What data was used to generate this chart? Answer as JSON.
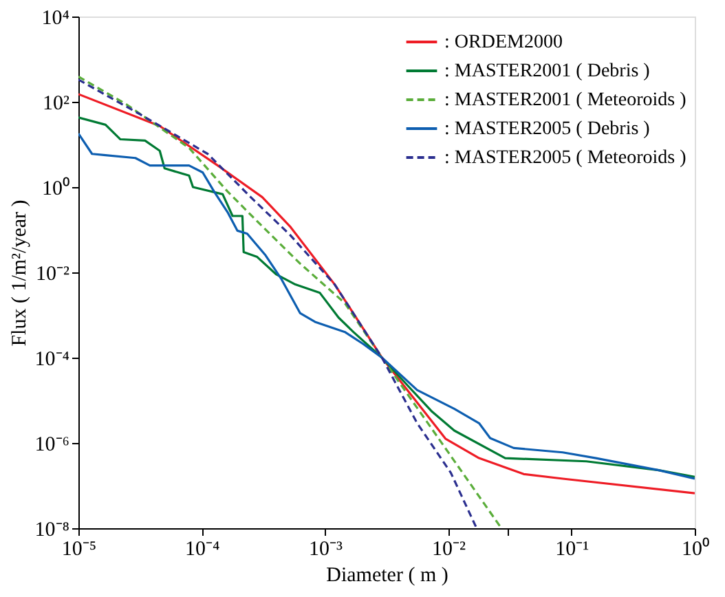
{
  "chart_data": {
    "type": "line",
    "xlabel": "Diameter ( m )",
    "ylabel": "Flux ( 1/m²/year )",
    "log": "xy",
    "grid": false,
    "legend": "top right",
    "xlim": [
      1e-05,
      1
    ],
    "ylim": [
      1e-08,
      10000
    ],
    "xticks": [
      {
        "value": 1e-05,
        "label": "10⁻⁵"
      },
      {
        "value": 0.0001,
        "label": "10⁻⁴"
      },
      {
        "value": 0.001,
        "label": "10⁻³"
      },
      {
        "value": 0.01,
        "label": "10⁻²"
      },
      {
        "value": 0.03,
        "label": null
      },
      {
        "value": 0.1,
        "label": "10⁻¹"
      },
      {
        "value": 1,
        "label": "10⁰"
      }
    ],
    "yticks": [
      {
        "value": 1e-08,
        "label": "10⁻⁸"
      },
      {
        "value": 1e-06,
        "label": "10⁻⁶"
      },
      {
        "value": 0.0001,
        "label": "10⁻⁴"
      },
      {
        "value": 0.01,
        "label": "10⁻²"
      },
      {
        "value": 1,
        "label": "10⁰"
      },
      {
        "value": 100,
        "label": "10²"
      },
      {
        "value": 10000,
        "label": "10⁴"
      }
    ],
    "series": [
      {
        "name": ": ORDEM2000",
        "color": "#ee1c25",
        "line_style": "solid",
        "x": [
          1e-05,
          4.57e-05,
          0.000135,
          0.00031,
          0.00052,
          0.0012,
          0.0029,
          0.0095,
          0.0178,
          0.041,
          0.085,
          1
        ],
        "values": [
          151,
          27,
          3.2,
          0.58,
          0.12,
          0.0052,
          0.0001,
          1.26e-06,
          4.4e-07,
          1.86e-07,
          1.45e-07,
          6.6e-08
        ]
      },
      {
        "name": ": MASTER2001 ( Debris )",
        "color": "#007a33",
        "line_style": "solid",
        "x": [
          1e-05,
          1.66e-05,
          2.19e-05,
          3.47e-05,
          4.57e-05,
          5e-05,
          7.9e-05,
          8.5e-05,
          0.000148,
          0.000178,
          0.000214,
          0.000219,
          0.000282,
          0.0004,
          0.000575,
          0.00091,
          0.00129,
          0.0017,
          0.0029,
          0.0047,
          0.0074,
          0.0112,
          0.029,
          0.132,
          0.51,
          1
        ],
        "values": [
          43,
          29,
          13.2,
          12.3,
          7.1,
          2.75,
          1.86,
          1,
          0.68,
          0.21,
          0.21,
          0.03,
          0.023,
          0.0091,
          0.0052,
          0.0033,
          0.00087,
          0.0004,
          0.0001,
          2.2e-05,
          5.4e-06,
          1.95e-06,
          4.4e-07,
          3.7e-07,
          2.3e-07,
          1.6e-07
        ]
      },
      {
        "name": ": MASTER2001 ( Meteoroids )",
        "color": "#5aad3a",
        "line_style": "dashed",
        "x": [
          1e-05,
          2.45e-05,
          7.9e-05,
          0.000162,
          0.00031,
          0.00063,
          0.00145,
          0.0029,
          0.0074,
          0.0138,
          0.027
        ],
        "values": [
          389,
          87,
          8.3,
          0.79,
          0.12,
          0.016,
          0.0019,
          0.0001,
          2.1e-06,
          1.6e-07,
          1e-08
        ]
      },
      {
        "name": ": MASTER2005 ( Debris )",
        "color": "#0d5eb0",
        "line_style": "solid",
        "x": [
          1e-05,
          1.29e-05,
          1.66e-05,
          2.9e-05,
          3.8e-05,
          7.9e-05,
          0.000102,
          0.000126,
          0.000162,
          0.000195,
          0.000234,
          0.00033,
          0.00044,
          0.00063,
          0.00083,
          0.00145,
          0.00204,
          0.0029,
          0.0056,
          0.0112,
          0.0178,
          0.0219,
          0.034,
          0.085,
          0.158,
          0.51,
          1
        ],
        "values": [
          18,
          6.0,
          5.6,
          4.8,
          3.2,
          3.2,
          2.2,
          0.79,
          0.26,
          0.095,
          0.081,
          0.025,
          0.0072,
          0.0011,
          0.00069,
          0.0004,
          0.00021,
          0.0001,
          1.74e-05,
          6.3e-06,
          2.9e-06,
          1.3e-06,
          7.6e-07,
          6e-07,
          4.4e-07,
          2.3e-07,
          1.45e-07
        ]
      },
      {
        "name": ": MASTER2005 ( Meteoroids )",
        "color": "#2b2f8f",
        "line_style": "dashed",
        "x": [
          1e-05,
          3.2e-05,
          0.000112,
          0.00025,
          0.00052,
          0.0012,
          0.0029,
          0.0056,
          0.0105,
          0.017
        ],
        "values": [
          331,
          50,
          6.0,
          0.58,
          0.076,
          0.0052,
          0.0001,
          2.9e-06,
          2e-07,
          1e-08
        ]
      }
    ]
  }
}
